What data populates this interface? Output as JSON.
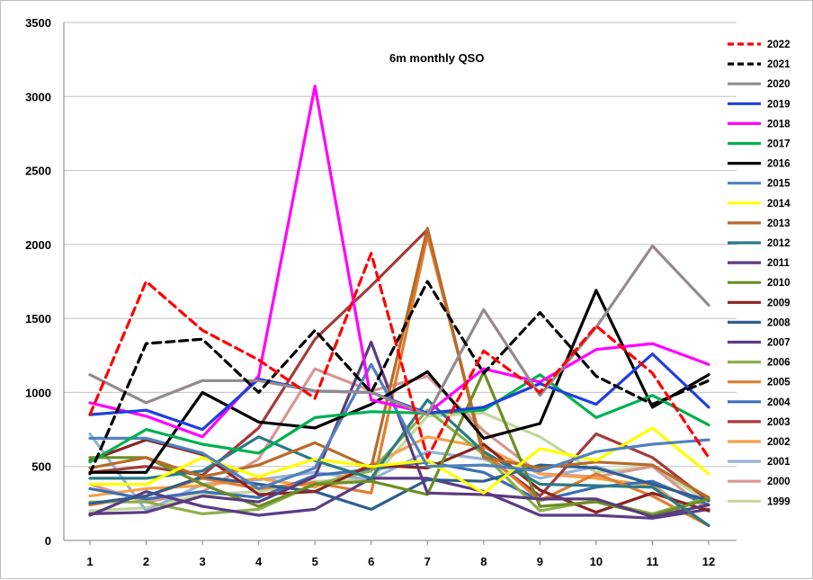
{
  "chart_data": {
    "type": "line",
    "title": "6m monthly QSO",
    "xlabel": "",
    "ylabel": "",
    "x": [
      1,
      2,
      3,
      4,
      5,
      6,
      7,
      8,
      9,
      10,
      11,
      12
    ],
    "ylim": [
      0,
      3500
    ],
    "yticks": [
      0,
      500,
      1000,
      1500,
      2000,
      2500,
      3000,
      3500
    ],
    "grid": "horizontal",
    "legend_position": "right",
    "series": [
      {
        "name": "2022",
        "color": "#ff0000",
        "dash": true,
        "width": 3.2,
        "values": [
          850,
          1750,
          1420,
          1220,
          960,
          1940,
          560,
          1280,
          1000,
          1450,
          1130,
          560
        ]
      },
      {
        "name": "2021",
        "color": "#000000",
        "dash": true,
        "width": 3.2,
        "values": [
          450,
          1330,
          1360,
          1000,
          1420,
          1000,
          1750,
          1130,
          1540,
          1110,
          920,
          1080
        ]
      },
      {
        "name": "2020",
        "color": "#948a8d",
        "dash": false,
        "width": 3.2,
        "values": [
          1120,
          930,
          1080,
          1080,
          1010,
          1000,
          850,
          1560,
          980,
          1440,
          1990,
          1590
        ]
      },
      {
        "name": "2019",
        "color": "#1f3fde",
        "dash": false,
        "width": 3.2,
        "values": [
          850,
          880,
          750,
          1090,
          1010,
          1000,
          860,
          900,
          1060,
          920,
          1260,
          900
        ]
      },
      {
        "name": "2018",
        "color": "#ff00ff",
        "dash": false,
        "width": 3.2,
        "values": [
          930,
          840,
          700,
          1110,
          3070,
          950,
          860,
          1160,
          1070,
          1290,
          1330,
          1190
        ]
      },
      {
        "name": "2017",
        "color": "#00b050",
        "dash": false,
        "width": 3.2,
        "values": [
          530,
          750,
          650,
          590,
          830,
          870,
          860,
          880,
          1120,
          830,
          980,
          780
        ]
      },
      {
        "name": "2016",
        "color": "#000000",
        "dash": false,
        "width": 3.2,
        "values": [
          460,
          460,
          1000,
          800,
          760,
          920,
          1140,
          690,
          790,
          1690,
          900,
          1120
        ]
      },
      {
        "name": "2015",
        "color": "#4f81bd",
        "dash": false,
        "width": 3.2,
        "values": [
          690,
          690,
          590,
          350,
          490,
          1190,
          500,
          510,
          470,
          600,
          650,
          680
        ]
      },
      {
        "name": "2014",
        "color": "#ffff00",
        "dash": false,
        "width": 3.2,
        "values": [
          380,
          380,
          560,
          430,
          550,
          500,
          540,
          320,
          620,
          540,
          760,
          450
        ]
      },
      {
        "name": "2013",
        "color": "#b86b28",
        "dash": false,
        "width": 3.2,
        "values": [
          490,
          560,
          430,
          510,
          660,
          490,
          2110,
          560,
          490,
          530,
          510,
          290
        ]
      },
      {
        "name": "2012",
        "color": "#2a7a86",
        "dash": false,
        "width": 3.2,
        "values": [
          420,
          420,
          470,
          700,
          540,
          420,
          950,
          600,
          380,
          370,
          360,
          100
        ]
      },
      {
        "name": "2011",
        "color": "#5b3b7f",
        "dash": false,
        "width": 3.2,
        "values": [
          180,
          190,
          300,
          260,
          430,
          1340,
          320,
          310,
          280,
          280,
          160,
          240
        ]
      },
      {
        "name": "2010",
        "color": "#6b8e23",
        "dash": false,
        "width": 3.2,
        "values": [
          560,
          560,
          380,
          230,
          380,
          400,
          310,
          1140,
          230,
          260,
          170,
          280
        ]
      },
      {
        "name": "2009",
        "color": "#8b2323",
        "dash": false,
        "width": 3.2,
        "values": [
          540,
          680,
          580,
          310,
          330,
          510,
          490,
          650,
          340,
          190,
          320,
          200
        ]
      },
      {
        "name": "2008",
        "color": "#2e5d8f",
        "dash": false,
        "width": 3.2,
        "values": [
          250,
          300,
          430,
          380,
          330,
          210,
          410,
          400,
          510,
          490,
          380,
          270
        ]
      },
      {
        "name": "2007",
        "color": "#5a3c85",
        "dash": false,
        "width": 3.2,
        "values": [
          170,
          330,
          230,
          170,
          210,
          420,
          420,
          330,
          170,
          170,
          150,
          210
        ]
      },
      {
        "name": "2006",
        "color": "#8db04b",
        "dash": false,
        "width": 3.2,
        "values": [
          260,
          260,
          180,
          210,
          380,
          470,
          880,
          580,
          200,
          270,
          180,
          290
        ]
      },
      {
        "name": "2005",
        "color": "#e07d2e",
        "dash": false,
        "width": 3.2,
        "values": [
          240,
          300,
          420,
          350,
          390,
          320,
          2060,
          600,
          270,
          450,
          300,
          100
        ]
      },
      {
        "name": "2004",
        "color": "#3c6eb4",
        "dash": false,
        "width": 3.2,
        "values": [
          350,
          280,
          330,
          290,
          440,
          480,
          530,
          460,
          270,
          360,
          400,
          240
        ]
      },
      {
        "name": "2003",
        "color": "#a33b3b",
        "dash": false,
        "width": 3.2,
        "values": [
          460,
          500,
          440,
          760,
          1360,
          1720,
          2100,
          580,
          300,
          720,
          560,
          270
        ]
      },
      {
        "name": "2002",
        "color": "#f4a14a",
        "dash": false,
        "width": 3.2,
        "values": [
          300,
          350,
          370,
          420,
          360,
          510,
          700,
          630,
          450,
          420,
          370,
          100
        ]
      },
      {
        "name": "2001",
        "color": "#95b3d7",
        "dash": false,
        "width": 3.2,
        "values": [
          720,
          200,
          380,
          410,
          460,
          410,
          600,
          550,
          420,
          500,
          380,
          100
        ]
      },
      {
        "name": "2000",
        "color": "#d99694",
        "dash": false,
        "width": 3.2,
        "values": [
          380,
          260,
          330,
          550,
          1160,
          1010,
          1110,
          740,
          450,
          430,
          500,
          200
        ]
      },
      {
        "name": "1999",
        "color": "#c3d69b",
        "dash": false,
        "width": 3.2,
        "values": [
          200,
          220,
          310,
          330,
          400,
          410,
          840,
          860,
          700,
          460,
          500,
          260
        ]
      }
    ]
  }
}
